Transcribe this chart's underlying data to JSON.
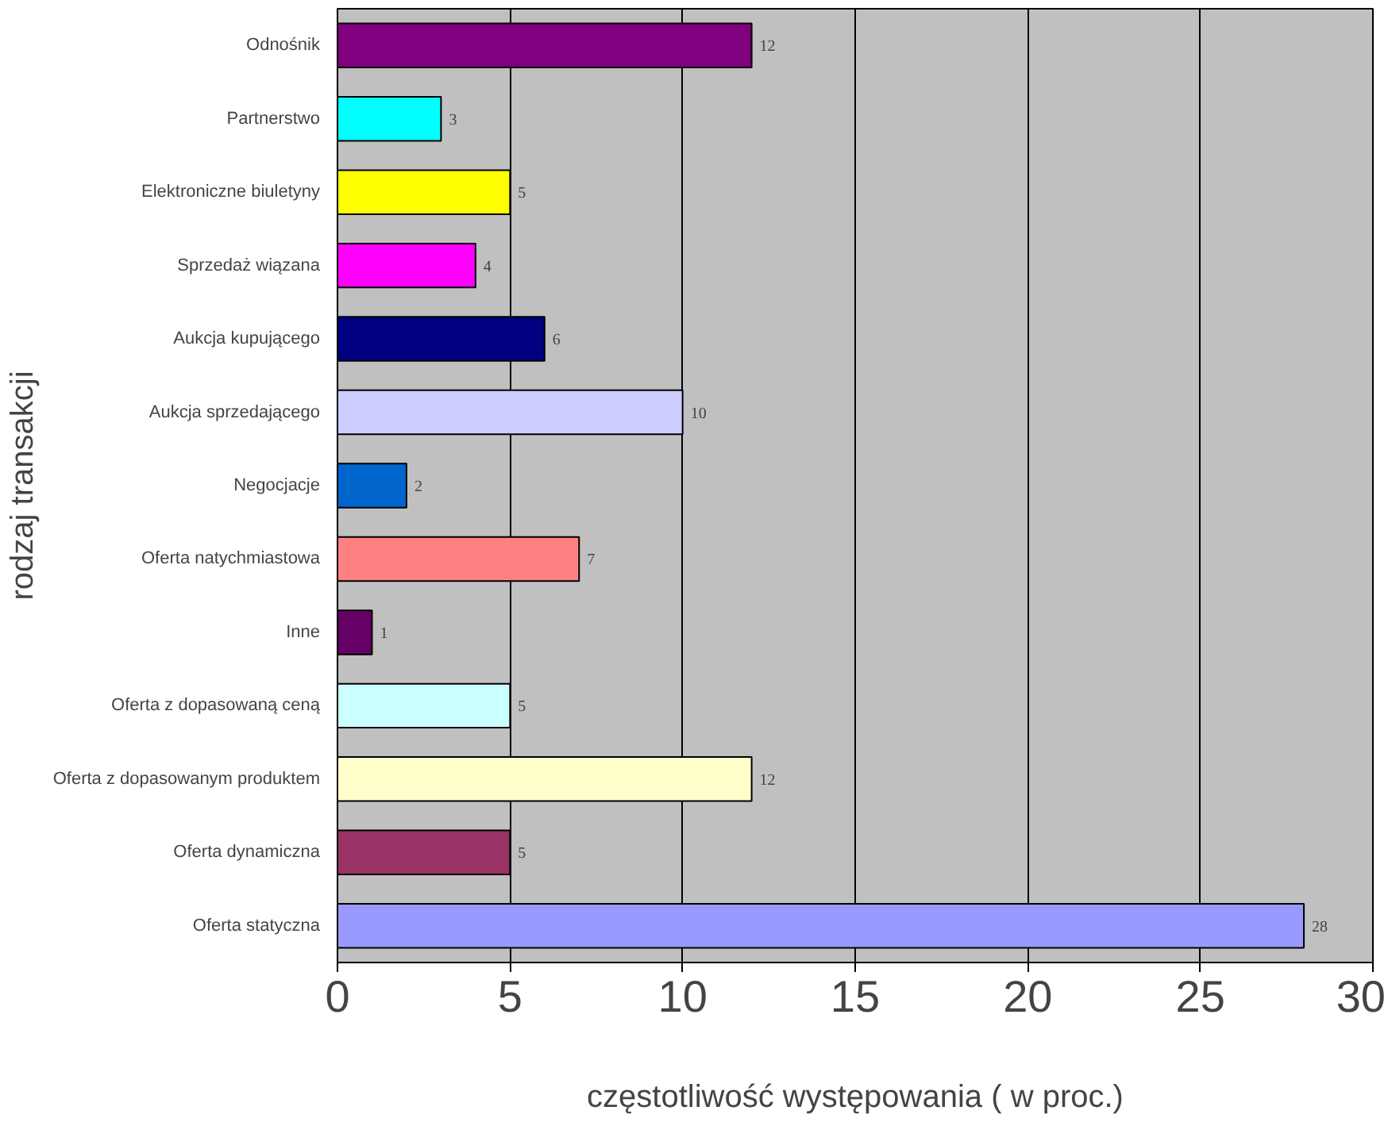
{
  "chart_data": {
    "type": "bar",
    "orientation": "horizontal",
    "xlabel": "częstotliwość występowania ( w proc.)",
    "ylabel": "rodzaj transakcji",
    "categories": [
      "Odnośnik",
      "Partnerstwo",
      "Elektroniczne biuletyny",
      "Sprzedaż wiązana",
      "Aukcja kupującego",
      "Aukcja sprzedającego",
      "Negocjacje",
      "Oferta natychmiastowa",
      "Inne",
      "Oferta z dopasowaną ceną",
      "Oferta z dopasowanym produktem",
      "Oferta dynamiczna",
      "Oferta statyczna"
    ],
    "values": [
      12,
      3,
      5,
      4,
      6,
      10,
      2,
      7,
      1,
      5,
      12,
      5,
      28
    ],
    "colors": [
      "#800080",
      "#00ffff",
      "#ffff00",
      "#ff00ff",
      "#000080",
      "#ccccff",
      "#0066cc",
      "#ff8080",
      "#660066",
      "#ccffff",
      "#ffffcc",
      "#993366",
      "#9999ff"
    ],
    "xlim": [
      0,
      30
    ],
    "xticks": [
      0,
      5,
      10,
      15,
      20,
      25,
      30
    ],
    "grid": "x",
    "data_labels": true
  }
}
